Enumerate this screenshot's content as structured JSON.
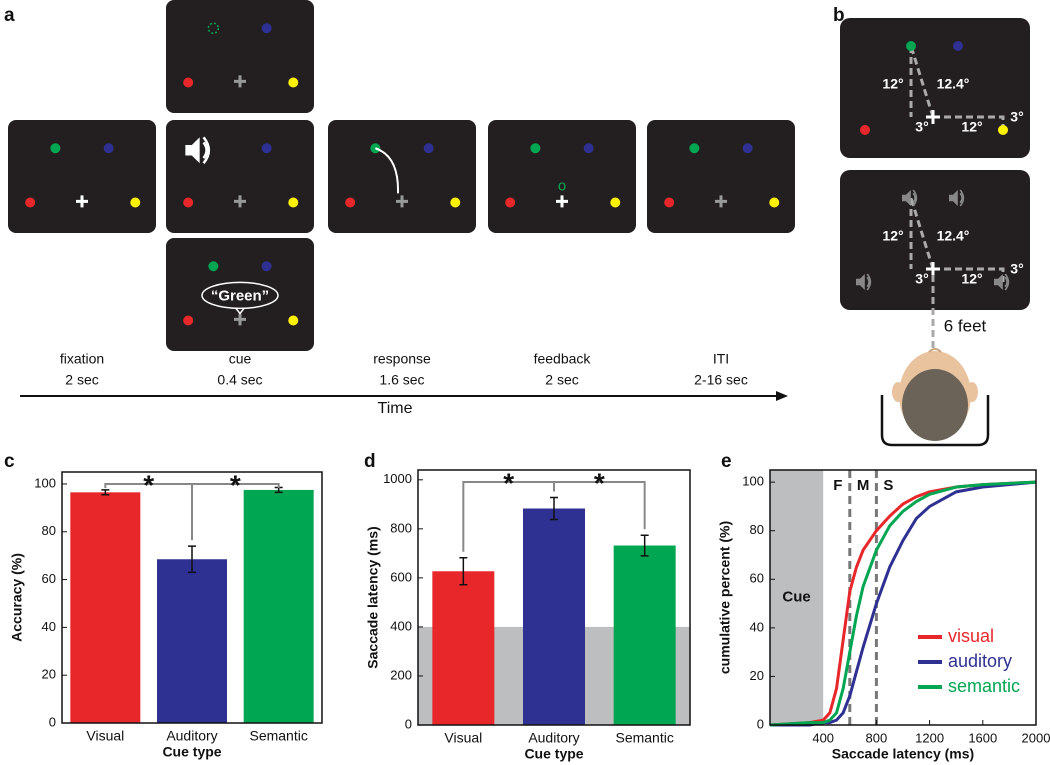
{
  "figure": {
    "panel_labels": [
      "a",
      "b",
      "c",
      "d",
      "e"
    ],
    "stages": [
      {
        "name": "fixation",
        "duration": "2 sec"
      },
      {
        "name": "cue",
        "duration": "0.4 sec"
      },
      {
        "name": "response",
        "duration": "1.6 sec"
      },
      {
        "name": "feedback",
        "duration": "2 sec"
      },
      {
        "name": "ITI",
        "duration": "2-16 sec"
      }
    ],
    "time_label": "Time",
    "speech_text": "“Green”",
    "feedback_mark": "o",
    "angles": [
      "12°",
      "12.4°",
      "3°",
      "12°",
      "3°"
    ],
    "distance": "6 feet"
  },
  "chart_data": [
    {
      "type": "bar",
      "xlabel": "Cue type",
      "ylabel": "Accuracy (%)",
      "categories": [
        "Visual",
        "Auditory",
        "Semantic"
      ],
      "values": [
        96.5,
        68.5,
        97.5
      ],
      "errors": [
        1,
        5.5,
        1
      ],
      "colors": [
        "#e8272a",
        "#2e3192",
        "#00a651"
      ],
      "ylim": [
        0,
        105
      ],
      "yticks": [
        0,
        20,
        40,
        60,
        80,
        100
      ],
      "significance": [
        "*",
        "*"
      ]
    },
    {
      "type": "bar",
      "xlabel": "Cue type",
      "ylabel": "Saccade latency (ms)",
      "categories": [
        "Visual",
        "Auditory",
        "Semantic"
      ],
      "values": [
        627,
        883,
        732
      ],
      "errors": [
        55,
        45,
        42
      ],
      "colors": [
        "#e8272a",
        "#2e3192",
        "#00a651"
      ],
      "ylim": [
        0,
        1040
      ],
      "yticks": [
        0,
        200,
        400,
        600,
        800,
        1000
      ],
      "cue_band": 400,
      "significance": [
        "*",
        "*"
      ]
    },
    {
      "type": "line",
      "xlabel": "Saccade latency (ms)",
      "ylabel": "cumulative percent (%)",
      "x": [
        0,
        300,
        400,
        450,
        500,
        550,
        600,
        650,
        700,
        800,
        900,
        1000,
        1100,
        1200,
        1400,
        1600,
        2000
      ],
      "series": [
        {
          "name": "visual",
          "color": "#e8272a",
          "values": [
            0,
            1,
            2,
            5,
            15,
            35,
            55,
            65,
            72,
            80,
            86,
            91,
            94,
            96,
            98,
            99,
            100
          ]
        },
        {
          "name": "auditory",
          "color": "#2e3192",
          "values": [
            0,
            0,
            1,
            1,
            2,
            5,
            12,
            22,
            32,
            50,
            65,
            76,
            85,
            90,
            96,
            98,
            100
          ]
        },
        {
          "name": "semantic",
          "color": "#00a651",
          "values": [
            0,
            1,
            1,
            2,
            5,
            15,
            30,
            45,
            57,
            72,
            82,
            88,
            92,
            95,
            98,
            99,
            100
          ]
        }
      ],
      "xlim": [
        0,
        2000
      ],
      "xticks": [
        400,
        800,
        1200,
        1600,
        2000
      ],
      "ylim": [
        0,
        105
      ],
      "yticks": [
        0,
        20,
        40,
        60,
        80,
        100
      ],
      "cue_band": 400,
      "cue_label": "Cue",
      "markers": [
        600,
        800
      ],
      "marker_labels": [
        "F",
        "M",
        "S"
      ]
    }
  ]
}
